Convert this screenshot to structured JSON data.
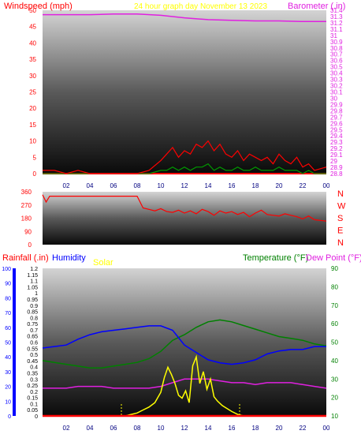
{
  "colors": {
    "wind_speed": "#ff0000",
    "wind_gust": "#009900",
    "barometer": "#e020e0",
    "wind_dir": "#ff0000",
    "rainfall": "#ff0000",
    "humidity": "#0000ff",
    "solar": "#ffff00",
    "temperature": "#008000",
    "dew_point": "#e020e0",
    "zero_line": "#ff0000",
    "title": "#ffff00"
  },
  "chart_data": [
    {
      "type": "line",
      "title": "24 hour graph day   November 13 2023",
      "left_axis": {
        "label": "Windspeed (mph)",
        "range": [
          0,
          50
        ],
        "ticks": [
          "0",
          "5",
          "10",
          "15",
          "20",
          "25",
          "30",
          "35",
          "40",
          "45",
          "50"
        ]
      },
      "right_axis": {
        "label": "Barometer (.in)",
        "range": [
          28.8,
          31.4
        ],
        "ticks": [
          "28.8",
          "28.9",
          "29",
          "29.1",
          "29.2",
          "29.3",
          "29.4",
          "29.5",
          "29.6",
          "29.7",
          "29.8",
          "29.9",
          "30",
          "30.1",
          "30.2",
          "30.3",
          "30.4",
          "30.5",
          "30.6",
          "30.7",
          "30.8",
          "30.9",
          "31",
          "31.1",
          "31.2",
          "31.3",
          "31.4"
        ]
      },
      "x_hours": [
        0,
        2,
        4,
        6,
        8,
        10,
        12,
        14,
        16,
        18,
        20,
        22,
        24
      ],
      "x_ticks": [
        "02",
        "04",
        "06",
        "08",
        "10",
        "12",
        "14",
        "16",
        "18",
        "20",
        "22",
        "00"
      ],
      "series": [
        {
          "key": "barometer",
          "x": [
            0,
            2,
            4,
            6,
            8,
            10,
            12,
            14,
            16,
            18,
            20,
            22,
            24
          ],
          "y": [
            31.33,
            31.33,
            31.33,
            31.34,
            31.34,
            31.32,
            31.28,
            31.25,
            31.24,
            31.23,
            31.23,
            31.22,
            31.22
          ]
        },
        {
          "key": "wind_speed",
          "x": [
            0,
            1,
            2,
            3,
            4,
            5,
            6,
            7,
            8,
            9,
            10,
            10.5,
            11,
            11.5,
            12,
            12.5,
            13,
            13.5,
            14,
            14.5,
            15,
            15.5,
            16,
            16.5,
            17,
            17.5,
            18,
            18.5,
            19,
            19.5,
            20,
            20.5,
            21,
            21.5,
            22,
            22.5,
            23,
            24
          ],
          "y": [
            1,
            1,
            0,
            1,
            0,
            0,
            0,
            0,
            0,
            1,
            4,
            6,
            8,
            5,
            7,
            6,
            9,
            8,
            10,
            7,
            9,
            6,
            5,
            7,
            4,
            6,
            5,
            4,
            5,
            3,
            6,
            4,
            3,
            5,
            2,
            3,
            1,
            2
          ]
        },
        {
          "key": "wind_gust",
          "x": [
            0,
            8,
            9,
            10,
            10.5,
            11,
            11.5,
            12,
            12.5,
            13,
            13.5,
            14,
            14.5,
            15,
            15.5,
            16,
            16.5,
            17,
            17.5,
            18,
            18.5,
            19,
            19.5,
            20,
            20.5,
            21,
            21.5,
            22,
            22.5,
            23,
            24
          ],
          "y": [
            0,
            0,
            0,
            1,
            1,
            2,
            1,
            2,
            1,
            2,
            2,
            3,
            1,
            2,
            1,
            1,
            2,
            1,
            1,
            2,
            1,
            1,
            1,
            2,
            1,
            1,
            1,
            0,
            1,
            0,
            0
          ]
        }
      ]
    },
    {
      "type": "line",
      "left_axis": {
        "ticks": [
          "0",
          "90",
          "180",
          "270",
          "360"
        ],
        "range": [
          0,
          360
        ]
      },
      "right_labels": [
        "N",
        "W",
        "S",
        "E",
        "N"
      ],
      "x_hours": [
        0,
        2,
        4,
        6,
        8,
        10,
        12,
        14,
        16,
        18,
        20,
        22,
        24
      ],
      "series": [
        {
          "key": "wind_dir",
          "x": [
            0,
            0.3,
            0.6,
            1,
            2,
            3,
            4,
            5,
            6,
            7,
            8,
            8.5,
            9,
            9.5,
            10,
            10.5,
            11,
            11.5,
            12,
            12.5,
            13,
            13.5,
            14,
            14.5,
            15,
            15.5,
            16,
            16.5,
            17,
            17.5,
            18,
            18.5,
            19,
            19.5,
            20,
            20.5,
            21,
            21.5,
            22,
            22.5,
            23,
            24
          ],
          "y": [
            340,
            290,
            330,
            330,
            330,
            330,
            330,
            330,
            330,
            330,
            330,
            250,
            240,
            230,
            245,
            225,
            220,
            235,
            215,
            230,
            210,
            240,
            225,
            200,
            230,
            215,
            225,
            205,
            220,
            190,
            215,
            235,
            205,
            200,
            195,
            210,
            200,
            190,
            175,
            195,
            170,
            160
          ]
        }
      ]
    },
    {
      "type": "line",
      "labels": {
        "rainfall": "Rainfall (.in)",
        "humidity": "Humidity",
        "solar": "Solar",
        "temperature": "Temperature (°F)",
        "dew_point": "Dew Point (°F)"
      },
      "humidity_axis": {
        "range": [
          0,
          100
        ],
        "ticks": [
          "0",
          "10",
          "20",
          "30",
          "40",
          "50",
          "60",
          "70",
          "80",
          "90",
          "100"
        ]
      },
      "rain_axis": {
        "range": [
          0,
          1.2
        ],
        "ticks": [
          "0",
          "0.05",
          "0.1",
          "0.15",
          "0.2",
          "0.25",
          "0.3",
          "0.35",
          "0.4",
          "0.45",
          "0.5",
          "0.55",
          "0.6",
          "0.65",
          "0.7",
          "0.75",
          "0.8",
          "0.85",
          "0.9",
          "0.95",
          "1",
          "1.05",
          "1.1",
          "1.15",
          "1.2"
        ]
      },
      "temp_axis": {
        "range": [
          10,
          90
        ],
        "ticks": [
          "10",
          "20",
          "30",
          "40",
          "50",
          "60",
          "70",
          "80",
          "90"
        ]
      },
      "x_hours": [
        0,
        2,
        4,
        6,
        8,
        10,
        12,
        14,
        16,
        18,
        20,
        22,
        24
      ],
      "x_ticks": [
        "02",
        "04",
        "06",
        "08",
        "10",
        "12",
        "14",
        "16",
        "18",
        "20",
        "22",
        "00"
      ],
      "series": [
        {
          "key": "humidity",
          "axis": "humidity",
          "x": [
            0,
            1,
            2,
            3,
            4,
            5,
            6,
            7,
            8,
            9,
            10,
            11,
            12,
            13,
            14,
            15,
            16,
            17,
            18,
            19,
            20,
            21,
            22,
            23,
            24
          ],
          "y": [
            46,
            47,
            48,
            52,
            55,
            57,
            58,
            59,
            60,
            61,
            61,
            58,
            48,
            43,
            38,
            36,
            35,
            36,
            38,
            42,
            44,
            45,
            45,
            47,
            47
          ]
        },
        {
          "key": "temperature",
          "axis": "temp",
          "x": [
            0,
            1,
            2,
            3,
            4,
            5,
            6,
            7,
            8,
            9,
            10,
            11,
            12,
            13,
            14,
            15,
            16,
            17,
            18,
            19,
            20,
            21,
            22,
            23,
            24
          ],
          "y": [
            40,
            39,
            38,
            37,
            36,
            36,
            37,
            38,
            39,
            41,
            45,
            51,
            54,
            58,
            61,
            62,
            61,
            59,
            57,
            55,
            53,
            52,
            51,
            49,
            48
          ]
        },
        {
          "key": "dew_point",
          "axis": "temp",
          "x": [
            0,
            1,
            2,
            3,
            4,
            5,
            6,
            7,
            8,
            9,
            10,
            11,
            12,
            13,
            14,
            15,
            16,
            17,
            18,
            19,
            20,
            21,
            22,
            23,
            24
          ],
          "y": [
            25,
            25,
            25,
            26,
            26,
            26,
            25,
            25,
            25,
            25,
            26,
            28,
            30,
            30,
            30,
            29,
            28,
            28,
            27,
            28,
            28,
            28,
            27,
            26,
            25
          ]
        },
        {
          "key": "solar",
          "axis": "humidity",
          "x": [
            7,
            7.5,
            8,
            8.5,
            9,
            9.5,
            10,
            10.3,
            10.6,
            10.9,
            11.2,
            11.5,
            11.8,
            12.1,
            12.4,
            12.7,
            13,
            13.3,
            13.6,
            13.9,
            14.2,
            14.5,
            14.8,
            15.2,
            15.6,
            16,
            16.5,
            17
          ],
          "y": [
            0,
            1,
            2,
            4,
            6,
            9,
            16,
            26,
            33,
            28,
            22,
            14,
            12,
            17,
            9,
            34,
            40,
            22,
            30,
            18,
            25,
            13,
            10,
            7,
            5,
            3,
            1,
            0
          ]
        },
        {
          "key": "rainfall",
          "axis": "rain",
          "x": [
            0,
            24
          ],
          "y": [
            0,
            0
          ]
        }
      ]
    }
  ]
}
